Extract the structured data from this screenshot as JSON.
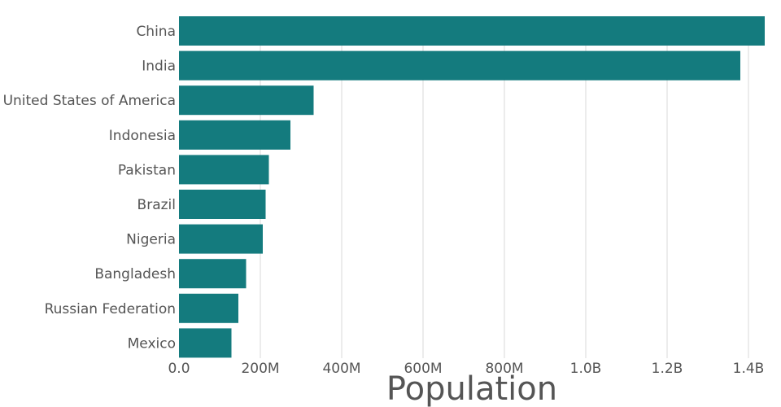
{
  "chart_data": {
    "type": "bar",
    "orientation": "horizontal",
    "categories": [
      "China",
      "India",
      "United States of America",
      "Indonesia",
      "Pakistan",
      "Brazil",
      "Nigeria",
      "Bangladesh",
      "Russian Federation",
      "Mexico"
    ],
    "values": [
      1440000000,
      1380000000,
      331000000,
      274000000,
      221000000,
      213000000,
      206000000,
      165000000,
      146000000,
      129000000
    ],
    "xlabel": "Population",
    "ylabel": "",
    "xlim": [
      0,
      1440000000
    ],
    "x_ticks": [
      0,
      200000000,
      400000000,
      600000000,
      800000000,
      1000000000,
      1200000000,
      1400000000
    ],
    "x_tick_labels": [
      "0.0",
      "200M",
      "400M",
      "600M",
      "800M",
      "1.0B",
      "1.2B",
      "1.4B"
    ],
    "grid": true,
    "legend": "none",
    "colors": {
      "bar": "#147b7e",
      "grid": "#d9d9d9",
      "text": "#555555"
    }
  }
}
